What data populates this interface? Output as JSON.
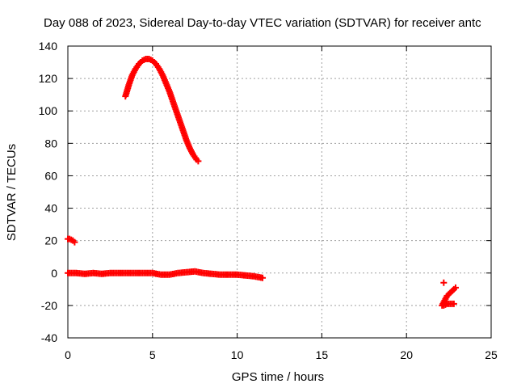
{
  "chart_data": {
    "type": "scatter",
    "title": "Day 088 of 2023, Sidereal Day-to-day VTEC variation (SDTVAR) for receiver antc",
    "xlabel": "GPS time / hours",
    "ylabel": "SDTVAR / TECUs",
    "xlim": [
      0,
      25
    ],
    "ylim": [
      -40,
      140
    ],
    "xticks": [
      0,
      5,
      10,
      15,
      20,
      25
    ],
    "yticks": [
      -40,
      -20,
      0,
      20,
      40,
      60,
      80,
      100,
      120,
      140
    ],
    "grid": true,
    "series": [
      {
        "name": "arc-high",
        "color": "#ff0000",
        "x": [
          3.4,
          3.6,
          3.8,
          4.0,
          4.2,
          4.4,
          4.6,
          4.8,
          5.0,
          5.2,
          5.4,
          5.6,
          5.8,
          6.0,
          6.2,
          6.4,
          6.6,
          6.8,
          7.0,
          7.2,
          7.4,
          7.6,
          7.7
        ],
        "y": [
          109,
          116,
          122,
          126,
          129,
          131,
          132,
          132,
          131,
          129,
          126,
          122,
          117,
          112,
          106,
          100,
          94,
          88,
          82,
          77,
          73,
          70,
          69
        ]
      },
      {
        "name": "arc-start",
        "color": "#ff0000",
        "x": [
          0.0,
          0.1,
          0.2,
          0.3,
          0.4
        ],
        "y": [
          21,
          21,
          20.5,
          20,
          19
        ]
      },
      {
        "name": "near-zero",
        "color": "#ff0000",
        "x": [
          0.0,
          0.5,
          1.0,
          1.5,
          2.0,
          2.5,
          3.0,
          3.5,
          4.0,
          4.5,
          5.0,
          5.5,
          6.0,
          6.5,
          7.0,
          7.5,
          8.0,
          8.5,
          9.0,
          9.5,
          10.0,
          10.5,
          11.0,
          11.5
        ],
        "y": [
          0,
          0,
          -0.5,
          0,
          -0.5,
          0,
          0,
          0,
          0,
          0,
          0,
          -1,
          -1,
          0,
          0.5,
          1,
          0,
          -0.5,
          -1,
          -1,
          -1,
          -1.5,
          -2,
          -3
        ]
      },
      {
        "name": "late-arc",
        "color": "#ff0000",
        "x": [
          22.1,
          22.2,
          22.3,
          22.4,
          22.5,
          22.6,
          22.7,
          22.8,
          22.9
        ],
        "y": [
          -20,
          -18,
          -16,
          -14,
          -13,
          -12,
          -11,
          -10,
          -9
        ]
      },
      {
        "name": "late-arc-2",
        "color": "#ff0000",
        "x": [
          22.2,
          22.4,
          22.6,
          22.8
        ],
        "y": [
          -20,
          -19,
          -19,
          -19
        ]
      },
      {
        "name": "late-point",
        "color": "#ff0000",
        "x": [
          22.2
        ],
        "y": [
          -6
        ]
      }
    ]
  }
}
